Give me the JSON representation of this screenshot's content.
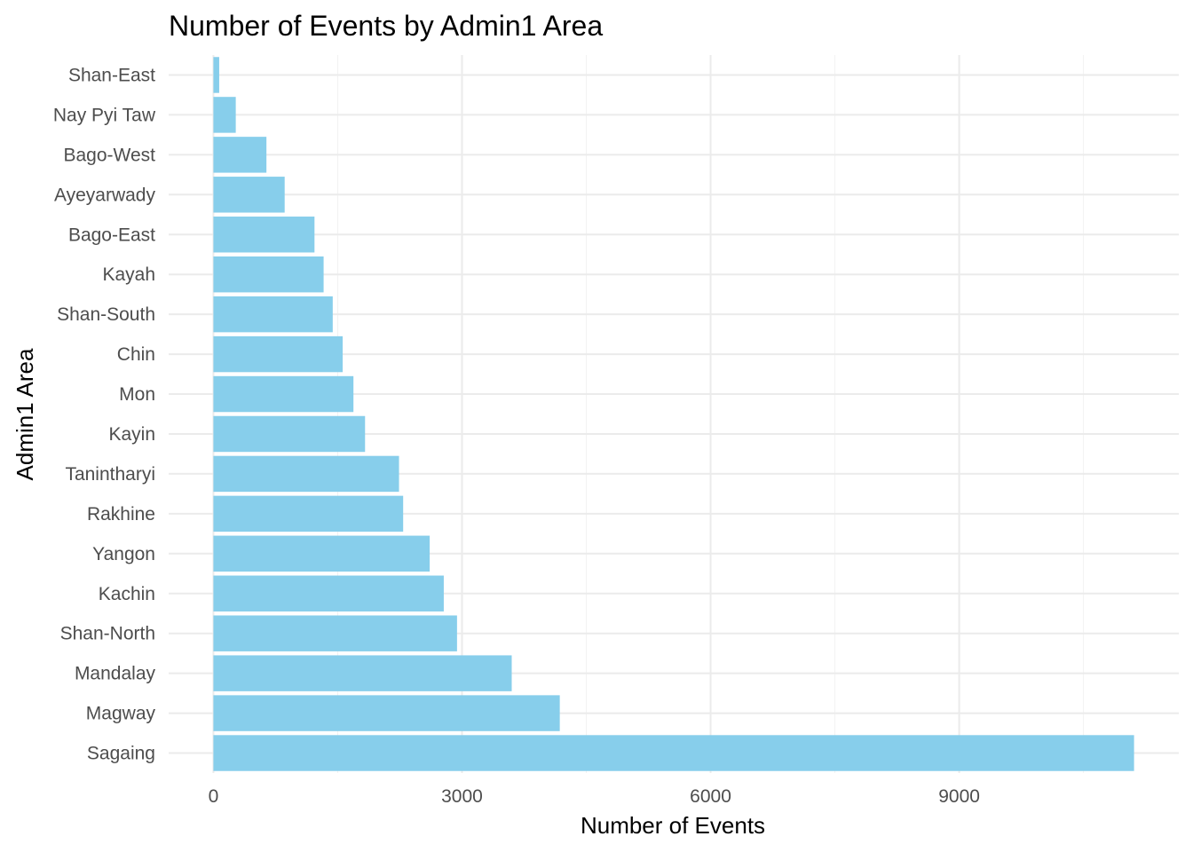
{
  "chart_data": {
    "type": "bar",
    "orientation": "horizontal",
    "title": "Number of Events by Admin1 Area",
    "xlabel": "Number of Events",
    "ylabel": "Admin1 Area",
    "categories": [
      "Sagaing",
      "Magway",
      "Mandalay",
      "Shan-North",
      "Kachin",
      "Yangon",
      "Rakhine",
      "Tanintharyi",
      "Kayin",
      "Mon",
      "Chin",
      "Shan-South",
      "Kayah",
      "Bago-East",
      "Ayeyarwady",
      "Bago-West",
      "Nay Pyi Taw",
      "Shan-East"
    ],
    "values": [
      11110,
      4180,
      3600,
      2940,
      2780,
      2610,
      2290,
      2240,
      1830,
      1690,
      1560,
      1440,
      1330,
      1220,
      860,
      640,
      270,
      70
    ],
    "xlim": [
      -540,
      11650
    ],
    "xticks": [
      0,
      3000,
      6000,
      9000
    ],
    "xtick_labels": [
      "0",
      "3000",
      "6000",
      "9000"
    ],
    "grid": true,
    "bar_color": "#87CEEB"
  }
}
